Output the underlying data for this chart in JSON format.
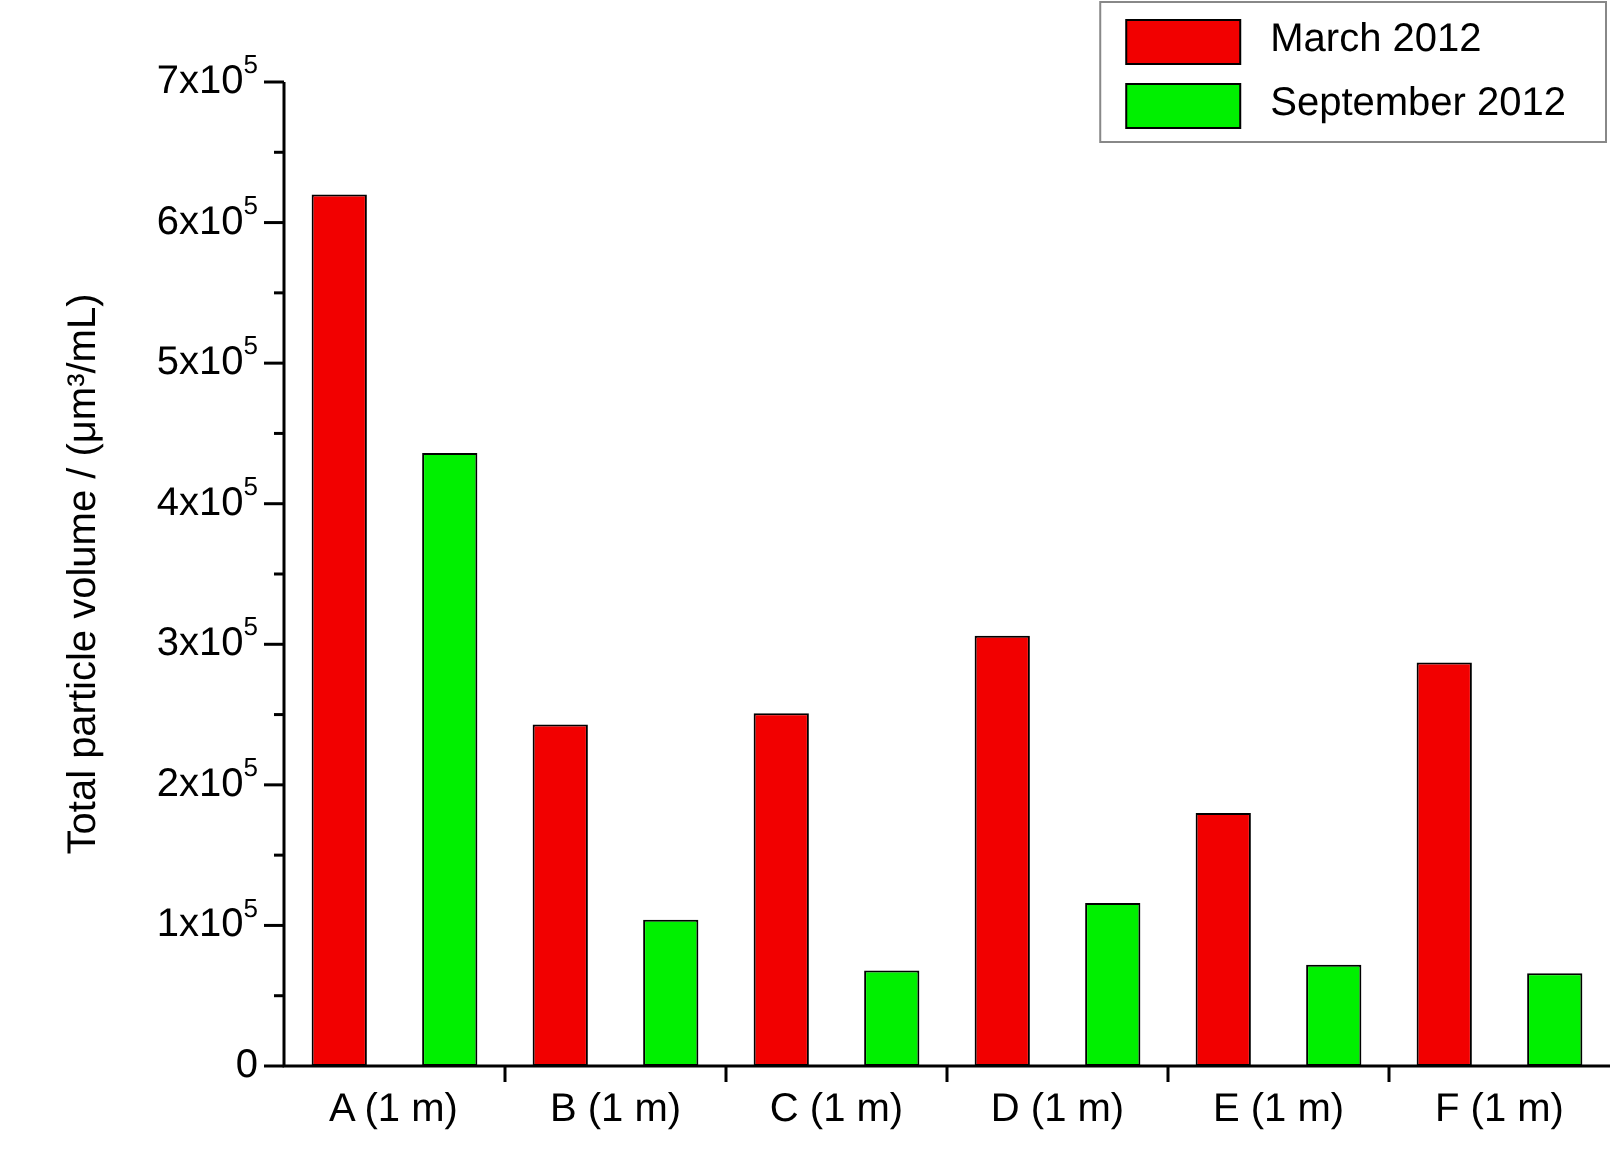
{
  "chart_data": {
    "type": "bar",
    "ylabel": "Total particle volume / (μm³/mL)",
    "categories": [
      "A (1 m)",
      "B (1 m)",
      "C (1 m)",
      "D (1 m)",
      "E (1 m)",
      "F (1 m)"
    ],
    "series": [
      {
        "name": "March 2012",
        "color": "#f20000",
        "values": [
          620000,
          243000,
          251000,
          306000,
          180000,
          287000
        ]
      },
      {
        "name": "September 2012",
        "color": "#00f000",
        "values": [
          436000,
          104000,
          68000,
          116000,
          72000,
          66000
        ]
      }
    ],
    "ylim": [
      0,
      700000
    ],
    "yticks": [
      0,
      {
        "value": 100000,
        "label": "1x10$^{5}$"
      },
      {
        "value": 200000,
        "label": "2x10$^{5}$"
      },
      {
        "value": 300000,
        "label": "3x10$^{5}$"
      },
      {
        "value": 400000,
        "label": "4x10$^{5}$"
      },
      {
        "value": 500000,
        "label": "5x10$^{5}$"
      },
      {
        "value": 600000,
        "label": "6x10$^{5}$"
      },
      {
        "value": 700000,
        "label": "7x10$^{5}$"
      }
    ],
    "legend": "top right",
    "grid": false
  }
}
